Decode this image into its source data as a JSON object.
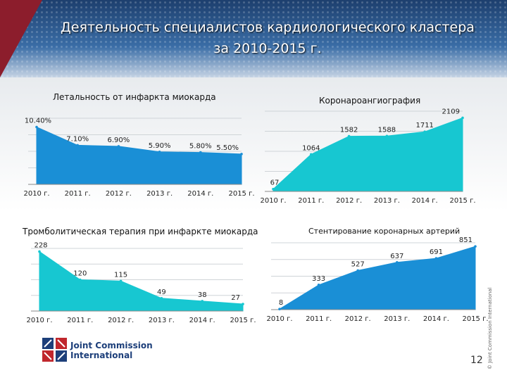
{
  "slide": {
    "title_line1": "Деятельность специалистов кардиологического кластера",
    "title_line2": "за 2010-2015 г.",
    "page_number": "12",
    "copyright": "© Joint Commission International",
    "logo_line1": "Joint Commission",
    "logo_line2": "International"
  },
  "colors": {
    "blue": "#1a8fd6",
    "cyan": "#17c7d1",
    "grid": "#cfd4d8"
  },
  "chart_data": [
    {
      "type": "area",
      "title": "Летальность от инфаркта миокарда",
      "categories": [
        "2010 г.",
        "2011 г.",
        "2012 г.",
        "2013 г.",
        "2014 г.",
        "2015 г."
      ],
      "values": [
        10.4,
        7.1,
        6.9,
        5.9,
        5.8,
        5.5
      ],
      "labels": [
        "10.40%",
        "7.10%",
        "6.90%",
        "5.90%",
        "5.80%",
        "5.50%"
      ],
      "ylim": [
        0,
        12
      ],
      "color": "blue"
    },
    {
      "type": "area",
      "title": "Коронароангиография",
      "categories": [
        "2010 г.",
        "2011 г.",
        "2012 г.",
        "2013 г.",
        "2014 г.",
        "2015 г."
      ],
      "values": [
        67,
        1064,
        1582,
        1588,
        1711,
        2109
      ],
      "labels": [
        "67",
        "1064",
        "1582",
        "1588",
        "1711",
        "2109"
      ],
      "ylim": [
        0,
        2300
      ],
      "color": "cyan"
    },
    {
      "type": "area",
      "title": "Тромболитическая терапия при инфаркте миокарда",
      "categories": [
        "2010 г.",
        "2011 г.",
        "2012 г.",
        "2013 г.",
        "2014 г.",
        "2015 г."
      ],
      "values": [
        228,
        120,
        115,
        49,
        38,
        27
      ],
      "labels": [
        "228",
        "120",
        "115",
        "49",
        "38",
        "27"
      ],
      "ylim": [
        0,
        240
      ],
      "color": "cyan"
    },
    {
      "type": "area",
      "title": "Стентирование коронарных артерий",
      "categories": [
        "2010 г.",
        "2011 г.",
        "2012 г.",
        "2013 г.",
        "2014 г.",
        "2015 г."
      ],
      "values": [
        8,
        333,
        527,
        637,
        691,
        851
      ],
      "labels": [
        "8",
        "333",
        "527",
        "637",
        "691",
        "851"
      ],
      "ylim": [
        0,
        900
      ],
      "color": "blue"
    }
  ]
}
